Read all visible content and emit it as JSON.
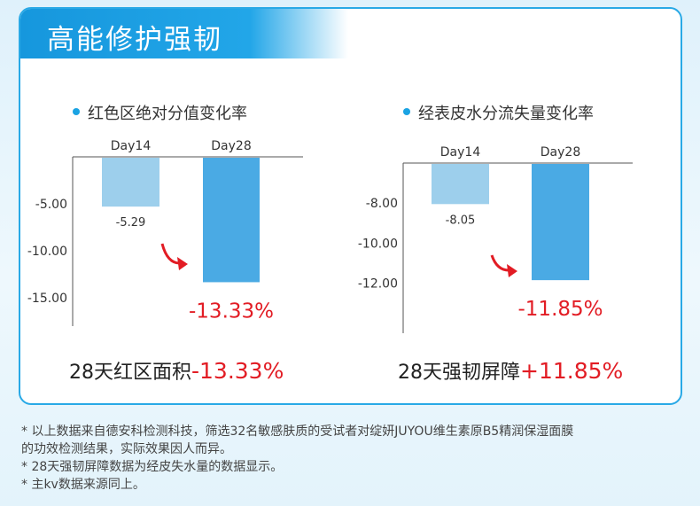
{
  "banner": {
    "title": "高能修护强韧"
  },
  "summaries": [
    {
      "prefix": "28天红区面积",
      "value": "-13.33%"
    },
    {
      "prefix": "28天强韧屏障",
      "value": "+11.85%"
    }
  ],
  "notes": [
    "* 以上数据来自德安科检测科技，筛选32名敏感肤质的受试者对绽妍JUYOU维生素原B5精润保湿面膜",
    "的功效检测结果，实际效果因人而异。",
    "* 28天强韧屏障数据为经皮失水量的数据显示。",
    "* 主kv数据来源同上。"
  ],
  "colors": {
    "light_bar": "#9dcfec",
    "dark_bar": "#4aaae4",
    "highlight": "#e21c24",
    "accent": "#1aa3e3"
  },
  "chart_data": [
    {
      "type": "bar",
      "title": "红色区绝对分值变化率",
      "categories": [
        "Day14",
        "Day28"
      ],
      "values": [
        -5.29,
        -13.33
      ],
      "data_labels": [
        "-5.29",
        "-13.33%"
      ],
      "yticks": [
        "-5.00",
        "-10.00",
        "-15.00"
      ],
      "ylim": [
        -18,
        0
      ]
    },
    {
      "type": "bar",
      "title": "经表皮水分流失量变化率",
      "categories": [
        "Day14",
        "Day28"
      ],
      "values": [
        -8.05,
        -11.85
      ],
      "data_labels": [
        "-8.05",
        "-11.85%"
      ],
      "yticks": [
        "-8.00",
        "-10.00",
        "-12.00"
      ],
      "ylim": [
        -14.5,
        -6
      ]
    }
  ]
}
